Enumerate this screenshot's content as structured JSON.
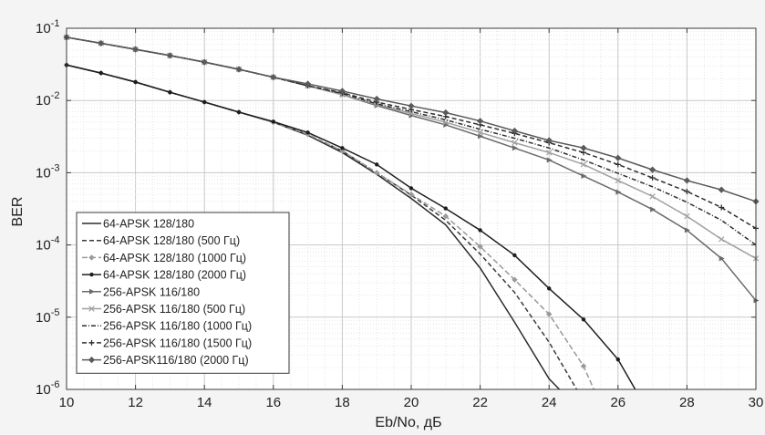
{
  "chart_data": {
    "type": "line",
    "title": "",
    "xlabel": "Eb/No, дБ",
    "ylabel": "BER",
    "xlim": [
      10,
      30
    ],
    "ylim": [
      1e-06,
      0.1
    ],
    "yscale": "log",
    "grid": true,
    "legend_position": "lower-left",
    "x_ticks": [
      "10",
      "12",
      "14",
      "16",
      "18",
      "20",
      "22",
      "24",
      "26",
      "28",
      "30"
    ],
    "y_ticks": [
      {
        "base": "10",
        "exp": "-1",
        "value": 0.1
      },
      {
        "base": "10",
        "exp": "-2",
        "value": 0.01
      },
      {
        "base": "10",
        "exp": "-3",
        "value": 0.001
      },
      {
        "base": "10",
        "exp": "-4",
        "value": 0.0001
      },
      {
        "base": "10",
        "exp": "-5",
        "value": 1e-05
      },
      {
        "base": "10",
        "exp": "-6",
        "value": 1e-06
      }
    ],
    "series": [
      {
        "name": "64-APSK 128/180",
        "color": "#2b2b2b",
        "dash": "",
        "marker": "none",
        "x": [
          10,
          11,
          12,
          13,
          14,
          15,
          16,
          17,
          18,
          19,
          20,
          21,
          22,
          23,
          24,
          24.3
        ],
        "y": [
          0.031,
          0.024,
          0.018,
          0.013,
          0.0095,
          0.0069,
          0.005,
          0.0033,
          0.0019,
          0.00095,
          0.00044,
          0.00019,
          4.8e-05,
          8.5e-06,
          1.4e-06,
          1e-06
        ]
      },
      {
        "name": "64-APSK 128/180 (500 Гц)",
        "color": "#3a3a3a",
        "dash": "5,3",
        "marker": "none",
        "x": [
          10,
          11,
          12,
          13,
          14,
          15,
          16,
          17,
          18,
          19,
          20,
          21,
          22,
          23,
          24,
          24.8
        ],
        "y": [
          0.031,
          0.024,
          0.018,
          0.013,
          0.0095,
          0.0069,
          0.005,
          0.0034,
          0.002,
          0.001,
          0.00049,
          0.00022,
          7.5e-05,
          2.2e-05,
          4.5e-06,
          1e-06
        ]
      },
      {
        "name": "64-APSK 128/180 (1000 Гц)",
        "color": "#9a9a9a",
        "dash": "6,3",
        "marker": "diamond",
        "x": [
          10,
          11,
          12,
          13,
          14,
          15,
          16,
          17,
          18,
          19,
          20,
          21,
          22,
          23,
          24,
          25,
          25.3
        ],
        "y": [
          0.031,
          0.024,
          0.018,
          0.013,
          0.0095,
          0.0069,
          0.005,
          0.0034,
          0.002,
          0.001,
          0.0005,
          0.00025,
          9.5e-05,
          3.3e-05,
          1.1e-05,
          2.1e-06,
          1e-06
        ]
      },
      {
        "name": "64-APSK 128/180 (2000 Гц)",
        "color": "#1e1e1e",
        "dash": "",
        "marker": "dot",
        "x": [
          10,
          11,
          12,
          13,
          14,
          15,
          16,
          17,
          18,
          19,
          20,
          21,
          22,
          23,
          24,
          25,
          26,
          26.5
        ],
        "y": [
          0.031,
          0.024,
          0.018,
          0.013,
          0.0095,
          0.0069,
          0.0051,
          0.0036,
          0.0022,
          0.0013,
          0.00061,
          0.00032,
          0.00016,
          7.2e-05,
          2.5e-05,
          9.3e-06,
          2.6e-06,
          1e-06
        ]
      },
      {
        "name": "256-APSK 116/180",
        "color": "#6a6a6a",
        "dash": "",
        "marker": "triangle",
        "x": [
          10,
          11,
          12,
          13,
          14,
          15,
          16,
          17,
          18,
          19,
          20,
          21,
          22,
          23,
          24,
          25,
          26,
          27,
          28,
          29,
          30
        ],
        "y": [
          0.075,
          0.062,
          0.051,
          0.042,
          0.034,
          0.027,
          0.021,
          0.016,
          0.012,
          0.0085,
          0.0062,
          0.0046,
          0.0032,
          0.0022,
          0.0015,
          0.0009,
          0.00054,
          0.00031,
          0.00016,
          6.5e-05,
          1.7e-05
        ]
      },
      {
        "name": "256-APSK 116/180 (500 Гц)",
        "color": "#a0a0a0",
        "dash": "",
        "marker": "cross",
        "x": [
          10,
          11,
          12,
          13,
          14,
          15,
          16,
          17,
          18,
          19,
          20,
          21,
          22,
          23,
          24,
          25,
          26,
          27,
          28,
          29,
          30
        ],
        "y": [
          0.075,
          0.062,
          0.051,
          0.042,
          0.034,
          0.027,
          0.021,
          0.016,
          0.012,
          0.0088,
          0.0066,
          0.005,
          0.0036,
          0.0026,
          0.0019,
          0.0013,
          0.00078,
          0.00047,
          0.00025,
          0.00012,
          6.5e-05
        ]
      },
      {
        "name": "256-APSK 116/180 (1000 Гц)",
        "color": "#2e2e2e",
        "dash": "5,2,1,2",
        "marker": "none",
        "x": [
          10,
          11,
          12,
          13,
          14,
          15,
          16,
          17,
          18,
          19,
          20,
          21,
          22,
          23,
          24,
          25,
          26,
          27,
          28,
          29,
          30
        ],
        "y": [
          0.075,
          0.062,
          0.051,
          0.042,
          0.034,
          0.027,
          0.021,
          0.016,
          0.0125,
          0.009,
          0.007,
          0.0054,
          0.004,
          0.003,
          0.0022,
          0.0015,
          0.00098,
          0.00064,
          0.00039,
          0.00022,
          0.0001
        ]
      },
      {
        "name": "256-APSK 116/180 (1500 Гц)",
        "color": "#2e2e2e",
        "dash": "5,3",
        "marker": "plus",
        "x": [
          10,
          11,
          12,
          13,
          14,
          15,
          16,
          17,
          18,
          19,
          20,
          21,
          22,
          23,
          24,
          25,
          26,
          27,
          28,
          29,
          30
        ],
        "y": [
          0.075,
          0.062,
          0.051,
          0.042,
          0.034,
          0.027,
          0.021,
          0.016,
          0.0128,
          0.0095,
          0.0075,
          0.006,
          0.0046,
          0.0035,
          0.0026,
          0.0019,
          0.0013,
          0.00085,
          0.00055,
          0.00033,
          0.00017
        ]
      },
      {
        "name": "256-APSK116/180 (2000 Гц)",
        "color": "#5a5a5a",
        "dash": "",
        "marker": "diamond-filled",
        "x": [
          10,
          11,
          12,
          13,
          14,
          15,
          16,
          17,
          18,
          19,
          20,
          21,
          22,
          23,
          24,
          25,
          26,
          27,
          28,
          29,
          30
        ],
        "y": [
          0.075,
          0.062,
          0.051,
          0.042,
          0.034,
          0.027,
          0.021,
          0.017,
          0.0135,
          0.0105,
          0.0084,
          0.0068,
          0.0052,
          0.0038,
          0.0028,
          0.0022,
          0.0016,
          0.0011,
          0.00078,
          0.00058,
          0.0004
        ]
      }
    ]
  }
}
